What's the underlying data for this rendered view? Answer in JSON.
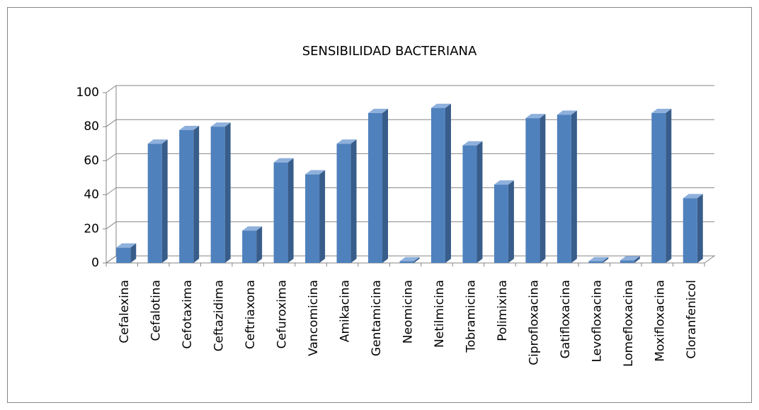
{
  "chart_data": {
    "type": "bar3d",
    "title": "SENSIBILIDAD BACTERIANA",
    "categories": [
      "Cefalexina",
      "Cefalotina",
      "Cefotaxima",
      "Ceftazidima",
      "Ceftriaxona",
      "Cefuroxima",
      "Vancomicina",
      "Amikacina",
      "Gentamicina",
      "Neomicina",
      "Netilmicina",
      "Tobramicina",
      "Polimixina",
      "Ciprofloxacina",
      "Gatifloxacina",
      "Levofloxacina",
      "Lomefloxacina",
      "Moxifloxacina",
      "Cloranfenicol"
    ],
    "values": [
      9,
      70,
      78,
      80,
      19,
      59,
      52,
      70,
      88,
      1,
      91,
      69,
      46,
      85,
      87,
      1,
      1.5,
      88,
      38
    ],
    "color": "#4f81bd",
    "ylim": [
      0,
      100
    ],
    "yticks": [
      0,
      20,
      40,
      60,
      80,
      100
    ],
    "grid": true
  }
}
